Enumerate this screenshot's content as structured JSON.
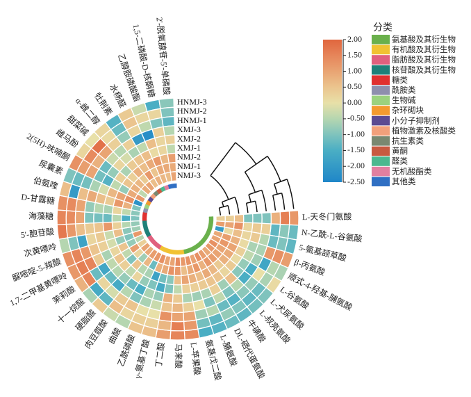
{
  "chart_data": {
    "type": "heatmap",
    "layout": "circular",
    "rows": [
      "HNMJ-3",
      "HNMJ-2",
      "HNMJ-1",
      "XMJ-3",
      "XMJ-2",
      "XMJ-1",
      "NMJ-2",
      "NMJ-1",
      "NMJ-3"
    ],
    "columns": [
      {
        "label": "L-天冬门氨酸",
        "cat": 0
      },
      {
        "label": "N-乙酰-L-谷氨酸",
        "cat": 0
      },
      {
        "label": "5-氨基颉草酸",
        "cat": 0
      },
      {
        "label": "β-丙氨酸",
        "cat": 0
      },
      {
        "label": "顺式-4-羟基-脯氨酸",
        "cat": 0
      },
      {
        "label": "L-谷氨酸",
        "cat": 0
      },
      {
        "label": "L-犬尿氨酸",
        "cat": 0
      },
      {
        "label": "L-叔亮氨酸",
        "cat": 0
      },
      {
        "label": "牛磺酸",
        "cat": 0
      },
      {
        "label": "DL-硒代蛋氨酸",
        "cat": 0
      },
      {
        "label": "L-脯氨酸",
        "cat": 0
      },
      {
        "label": "氨基戊二酸",
        "cat": 0
      },
      {
        "label": "L-苹果酸",
        "cat": 1
      },
      {
        "label": "马来酸",
        "cat": 1
      },
      {
        "label": "丁二酸",
        "cat": 1
      },
      {
        "label": "γ-氨基丁酸",
        "cat": 1
      },
      {
        "label": "乙酰磷酸",
        "cat": 1
      },
      {
        "label": "曲酸",
        "cat": 1
      },
      {
        "label": "肉豆蔻酸",
        "cat": 2
      },
      {
        "label": "硬脂酸",
        "cat": 2
      },
      {
        "label": "十一烷酸",
        "cat": 2
      },
      {
        "label": "茉莉酸",
        "cat": 2
      },
      {
        "label": "1,7-二甲基黄嘌呤",
        "cat": 3
      },
      {
        "label": "脲嘧啶-5-羧酸",
        "cat": 3
      },
      {
        "label": "次黄嘌呤",
        "cat": 3
      },
      {
        "label": "5'-胞苷酸",
        "cat": 3
      },
      {
        "label": "海藻糖",
        "cat": 4
      },
      {
        "label": "D-甘露糖",
        "cat": 4
      },
      {
        "label": "伯氨喹",
        "cat": 5
      },
      {
        "label": "尿囊素",
        "cat": 6
      },
      {
        "label": "2(5H)-呋喃酮",
        "cat": 7
      },
      {
        "label": "雌马酚",
        "cat": 8
      },
      {
        "label": "甜菜碱",
        "cat": 9
      },
      {
        "label": "α-雌二醇",
        "cat": 10
      },
      {
        "label": "牡荆素",
        "cat": 11
      },
      {
        "label": "水杨醛",
        "cat": 12
      },
      {
        "label": "乙醇胺磷酸酯",
        "cat": 13
      },
      {
        "label": "1,5-二磷酸-D-核酮糖",
        "cat": 14
      },
      {
        "label": "2'-脱氧腺苷-5'-单磷酸",
        "cat": 14
      }
    ],
    "values": [
      [
        1.2,
        1.6,
        0.8,
        -1,
        -1,
        -1,
        0.6,
        0.3,
        0.3
      ],
      [
        -1.2,
        -0.9,
        -1.3,
        0.3,
        0.4,
        0.2,
        1.3,
        1.0,
        1.1
      ],
      [
        -1.3,
        -1.0,
        -1.2,
        -0.5,
        0.4,
        0.2,
        0.6,
        0.1,
        -2.0
      ],
      [
        1.1,
        1.3,
        1.2,
        -0.6,
        -0.6,
        0.1,
        0.8,
        1.1,
        0.9
      ],
      [
        -0.6,
        -0.5,
        -1.7,
        -0.7,
        -0.4,
        0.3,
        1.0,
        1.2,
        1.0
      ],
      [
        0.1,
        -0.6,
        0.0,
        -1.5,
        -0.8,
        0.1,
        0.9,
        1.0,
        1.3
      ],
      [
        -1.0,
        -1.2,
        -0.8,
        -1.5,
        -0.9,
        0.4,
        0.8,
        1.0,
        1.2
      ],
      [
        -1.1,
        -1.3,
        -0.9,
        -0.5,
        0.6,
        0.2,
        0.4,
        1.1,
        0.9
      ],
      [
        -1.3,
        -1.0,
        -1.4,
        -1.0,
        -0.7,
        0.5,
        0.7,
        1.2,
        1.1
      ],
      [
        -1.2,
        -0.8,
        -1.2,
        -0.4,
        0.3,
        0.5,
        0.9,
        0.8,
        1.3
      ],
      [
        -1.4,
        -1.3,
        -0.5,
        -1.0,
        -0.6,
        0.4,
        0.6,
        1.2,
        1.0
      ],
      [
        -1.5,
        -1.1,
        -0.7,
        0.0,
        -0.7,
        0.3,
        0.8,
        0.9,
        1.3
      ],
      [
        1.4,
        1.2,
        1.0,
        0.3,
        -0.6,
        0.3,
        1.0,
        0.6,
        1.2
      ],
      [
        1.5,
        1.6,
        1.0,
        0.7,
        0.4,
        -0.4,
        0.6,
        1.2,
        1.4
      ],
      [
        1.1,
        0.7,
        1.3,
        0.5,
        0.8,
        -1.0,
        -0.9,
        1.3,
        1.0
      ],
      [
        0.6,
        0.3,
        0.0,
        -0.3,
        -0.8,
        -1.6,
        -1.1,
        0.9,
        1.0
      ],
      [
        0.5,
        0.3,
        0.0,
        -0.6,
        -0.6,
        -1.0,
        -1.8,
        0.8,
        1.3
      ],
      [
        -0.5,
        0.2,
        0.5,
        -1.0,
        -1.5,
        -0.8,
        -0.6,
        -1.2,
        1.2
      ],
      [
        -0.3,
        0.6,
        0.4,
        -0.5,
        -1.2,
        0.2,
        -0.5,
        0.7,
        1.1
      ],
      [
        0.4,
        -1.3,
        -0.2,
        -1.6,
        -0.8,
        -0.4,
        0.5,
        -0.7,
        0.9
      ],
      [
        -0.6,
        -1.6,
        0.2,
        -1.2,
        -0.5,
        0.3,
        -1.0,
        0.2,
        1.0
      ],
      [
        0.8,
        1.5,
        -1.2,
        -1.7,
        -0.4,
        0.5,
        -0.4,
        1.1,
        0.3
      ],
      [
        1.2,
        1.6,
        1.5,
        0.4,
        -0.6,
        0.2,
        0.5,
        -0.8,
        -0.5
      ],
      [
        1.3,
        1.5,
        1.2,
        0.5,
        0.3,
        -0.2,
        -0.8,
        -1.0,
        1.2
      ],
      [
        -0.5,
        -1.0,
        -1.8,
        0.2,
        0.4,
        -0.3,
        0.6,
        -0.9,
        -0.7
      ],
      [
        1.7,
        1.2,
        0.6,
        0.4,
        0.5,
        1.2,
        0.3,
        -0.5,
        -0.8
      ],
      [
        1.5,
        1.4,
        1.0,
        -1.0,
        -1.1,
        -1.2,
        -0.5,
        -1.5,
        -1.0
      ],
      [
        1.3,
        1.4,
        1.0,
        -0.8,
        -0.5,
        -0.6,
        0.2,
        -0.4,
        -0.9
      ],
      [
        0.6,
        -2.0,
        0.6,
        0.9,
        0.6,
        0.4,
        1.2,
        0.8,
        -1.0
      ],
      [
        -1.0,
        -1.2,
        -1.1,
        -0.6,
        -0.2,
        0.7,
        1.0,
        1.3,
        -2.2
      ],
      [
        1.3,
        1.1,
        1.0,
        -1.1,
        -1.4,
        -0.4,
        -0.8,
        0.9,
        1.2
      ],
      [
        0.2,
        1.4,
        0.8,
        -1.2,
        -0.8,
        0.3,
        0.5,
        0.8,
        -0.4
      ],
      [
        0.0,
        1.8,
        1.0,
        -0.3,
        0.2,
        -0.6,
        0.3,
        0.7,
        0.9
      ],
      [
        0.2,
        0.1,
        0.3,
        -0.5,
        -0.2,
        0.4,
        0.8,
        0.4,
        1.0
      ],
      [
        -1.4,
        -1.2,
        -0.8,
        0.3,
        -0.6,
        0.5,
        0.6,
        1.2,
        0.6
      ],
      [
        0.4,
        0.5,
        0.2,
        -2.0,
        -0.4,
        0.6,
        0.9,
        0.5,
        0.8
      ],
      [
        -0.3,
        0.2,
        -0.4,
        -2.3,
        0.6,
        0.1,
        1.2,
        0.9,
        0.7
      ],
      [
        -1.5,
        0.2,
        -1.0,
        0.3,
        0.2,
        0.2,
        0.7,
        0.9,
        0.6
      ],
      [
        -0.9,
        -1.0,
        -1.3,
        -0.5,
        0.3,
        -0.4,
        1.1,
        0.9,
        1.0
      ]
    ],
    "color_range": [
      -2.5,
      2.0
    ],
    "colorscale": [
      {
        "v": -2.5,
        "c": "#1f86c8"
      },
      {
        "v": -1.5,
        "c": "#4aaec4"
      },
      {
        "v": -1.0,
        "c": "#7fc3bd"
      },
      {
        "v": -0.5,
        "c": "#b5d6b0"
      },
      {
        "v": 0.0,
        "c": "#e8e0a8"
      },
      {
        "v": 0.5,
        "c": "#ebc48e"
      },
      {
        "v": 1.0,
        "c": "#e9a473"
      },
      {
        "v": 1.5,
        "c": "#e6855a"
      },
      {
        "v": 2.0,
        "c": "#e0663e"
      }
    ],
    "colorbar_ticks": [
      "2.00",
      "1.50",
      "1.00",
      "0.50",
      "0.00",
      "-0.50",
      "-1.00",
      "-1.50",
      "-2.00",
      "-2.50"
    ],
    "legend": {
      "title": "分类",
      "items": [
        {
          "label": "氨基酸及其衍生物",
          "color": "#6ab04c"
        },
        {
          "label": "有机酸及其衍生物",
          "color": "#f1c232"
        },
        {
          "label": "脂肪酸及其衍生物",
          "color": "#e0607e"
        },
        {
          "label": "核苷酸及其衍生物",
          "color": "#1e8079"
        },
        {
          "label": "糖类",
          "color": "#e03030"
        },
        {
          "label": "酰胺类",
          "color": "#8e8fad"
        },
        {
          "label": "生物碱",
          "color": "#9bd27e"
        },
        {
          "label": "杂环砌块",
          "color": "#f39a2f"
        },
        {
          "label": "小分子抑制剂",
          "color": "#5b4a92"
        },
        {
          "label": "植物激素及核酸类",
          "color": "#f2a07b"
        },
        {
          "label": "抗生素类",
          "color": "#7a8870"
        },
        {
          "label": "黄酮",
          "color": "#c85a40"
        },
        {
          "label": "醛类",
          "color": "#4cb88f"
        },
        {
          "label": "无机酸酯类",
          "color": "#e27fa0"
        },
        {
          "label": "其他类",
          "color": "#2f6fc3"
        }
      ]
    },
    "row_dendrogram": {
      "merges": [
        {
          "a": "NMJ-1",
          "b": "NMJ-3",
          "height": 10
        },
        {
          "a": "NMJ-1+NMJ-3",
          "b": "NMJ-2",
          "height": 16
        },
        {
          "a": "XMJ-1",
          "b": "XMJ-2",
          "height": 8
        },
        {
          "a": "XMJ-1+XMJ-2",
          "b": "XMJ-3",
          "height": 14
        },
        {
          "a": "HNMJ-1",
          "b": "HNMJ-2",
          "height": 9
        },
        {
          "a": "HNMJ-1+HNMJ-2",
          "b": "HNMJ-3",
          "height": 15
        },
        {
          "a": "XMJ",
          "b": "HNMJ",
          "height": 30
        },
        {
          "a": "NMJ",
          "b": "XMJ+HNMJ",
          "height": 48
        }
      ]
    }
  }
}
